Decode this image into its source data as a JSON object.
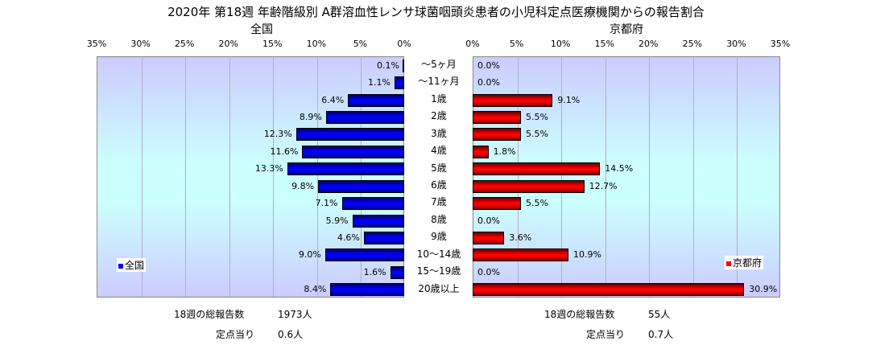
{
  "chart_data": {
    "type": "bar",
    "title": "2020年 第18週 年齢階級別 A群溶血性レンサ球菌咽頭炎患者の小児科定点医療機関からの報告割合",
    "categories": [
      "～5ヶ月",
      "～11ヶ月",
      "1歳",
      "2歳",
      "3歳",
      "4歳",
      "5歳",
      "6歳",
      "7歳",
      "8歳",
      "9歳",
      "10～14歳",
      "15～19歳",
      "20歳以上"
    ],
    "xlim": [
      0,
      35
    ],
    "ticks": [
      "0%",
      "5%",
      "10%",
      "15%",
      "20%",
      "25%",
      "30%",
      "35%"
    ],
    "series": [
      {
        "name": "全国",
        "color": "#0000ff",
        "values": [
          0.1,
          1.1,
          6.4,
          8.9,
          12.3,
          11.6,
          13.3,
          9.8,
          7.1,
          5.9,
          4.6,
          9.0,
          1.6,
          8.4
        ],
        "labels": [
          "0.1%",
          "1.1%",
          "6.4%",
          "8.9%",
          "12.3%",
          "11.6%",
          "13.3%",
          "9.8%",
          "7.1%",
          "5.9%",
          "4.6%",
          "9.0%",
          "1.6%",
          "8.4%"
        ]
      },
      {
        "name": "京都府",
        "color": "#ff0000",
        "values": [
          0.0,
          0.0,
          9.1,
          5.5,
          5.5,
          1.8,
          14.5,
          12.7,
          5.5,
          0.0,
          3.6,
          10.9,
          0.0,
          30.9
        ],
        "labels": [
          "0.0%",
          "0.0%",
          "9.1%",
          "5.5%",
          "5.5%",
          "1.8%",
          "14.5%",
          "12.7%",
          "5.5%",
          "0.0%",
          "3.6%",
          "10.9%",
          "0.0%",
          "30.9%"
        ]
      }
    ]
  },
  "footer": {
    "left": {
      "total_label": "18週の総報告数",
      "total": "1973人",
      "per_label": "定点当り",
      "per": "0.6人"
    },
    "right": {
      "total_label": "18週の総報告数",
      "total": "55人",
      "per_label": "定点当り",
      "per": "0.7人"
    }
  }
}
